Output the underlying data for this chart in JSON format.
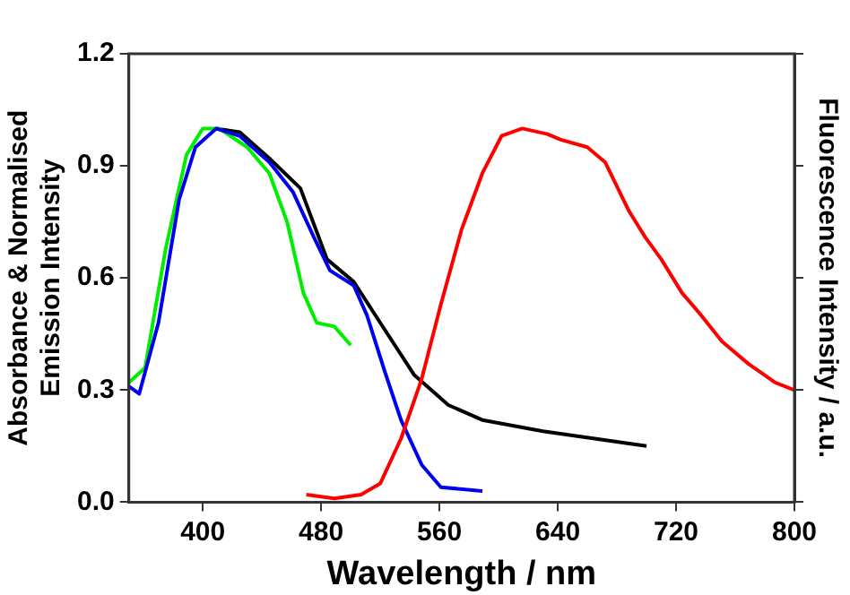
{
  "chart_data": {
    "type": "line",
    "xlabel": "Wavelength / nm",
    "ylabel": "Absorbance & Normalised\nEmission Intensity",
    "y2label": "Fluorescence Intensity / a.u.",
    "xlim": [
      350,
      800
    ],
    "xticks": [
      400,
      480,
      560,
      640,
      720,
      800
    ],
    "ylim": [
      0,
      1.2
    ],
    "yticks": [
      {
        "value": 0,
        "label": "0.0"
      },
      0.3,
      0.6,
      0.9,
      1.2
    ],
    "grid": false,
    "legend": false,
    "marker": "none",
    "line_style": "solid",
    "series": [
      {
        "color": "#000000",
        "x": [
          409,
          425,
          445,
          466,
          484,
          502,
          520,
          543,
          566,
          589,
          630,
          665,
          700
        ],
        "values": [
          1.0,
          0.99,
          0.92,
          0.84,
          0.65,
          0.59,
          0.48,
          0.34,
          0.26,
          0.22,
          0.19,
          0.17,
          0.15
        ]
      },
      {
        "color": "#00ee00",
        "x": [
          350,
          361,
          375,
          389,
          400,
          411,
          430,
          445,
          457,
          468,
          477,
          489,
          500
        ],
        "values": [
          0.32,
          0.36,
          0.68,
          0.93,
          1.0,
          1.0,
          0.95,
          0.88,
          0.75,
          0.56,
          0.48,
          0.47,
          0.42
        ]
      },
      {
        "color": "#0000ee",
        "x": [
          350,
          357,
          370,
          384,
          395,
          409,
          425,
          445,
          461,
          475,
          486,
          502,
          511,
          523,
          534,
          548,
          561,
          589
        ],
        "values": [
          0.31,
          0.29,
          0.48,
          0.81,
          0.95,
          1.0,
          0.98,
          0.91,
          0.83,
          0.71,
          0.62,
          0.58,
          0.5,
          0.35,
          0.22,
          0.1,
          0.04,
          0.03
        ]
      },
      {
        "color": "#ff0000",
        "x": [
          470,
          489,
          507,
          520,
          534,
          548,
          561,
          575,
          589,
          602,
          616,
          633,
          642,
          660,
          672,
          688,
          699,
          710,
          724,
          737,
          751,
          769,
          787,
          800
        ],
        "values": [
          0.02,
          0.01,
          0.02,
          0.05,
          0.17,
          0.33,
          0.53,
          0.73,
          0.88,
          0.98,
          1.0,
          0.985,
          0.97,
          0.95,
          0.91,
          0.78,
          0.71,
          0.65,
          0.56,
          0.5,
          0.43,
          0.37,
          0.32,
          0.3
        ]
      }
    ]
  }
}
